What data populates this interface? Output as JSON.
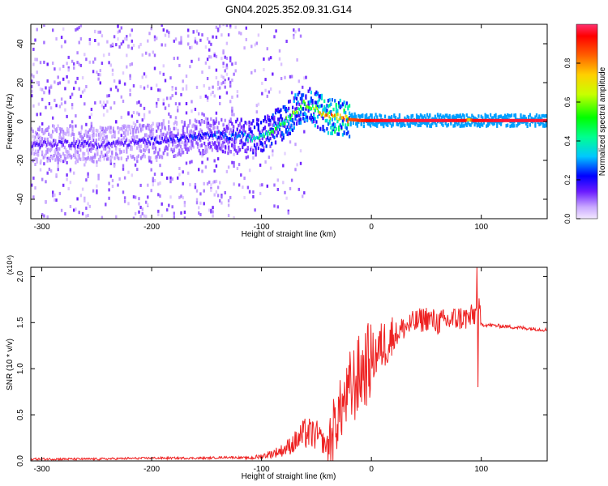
{
  "title": "GN04.2025.352.09.31.G14",
  "chart_data": [
    {
      "type": "heatmap",
      "xlabel": "Height of straight line (km)",
      "ylabel": "Frequency (Hz)",
      "xlim": [
        -310,
        160
      ],
      "ylim": [
        -50,
        50
      ],
      "x_ticks": [
        -300,
        -200,
        -100,
        0,
        100
      ],
      "y_ticks": [
        -40,
        -20,
        0,
        20,
        40
      ],
      "colorbar": {
        "label": "Normalized spectral amplitude",
        "range": [
          0.0,
          1.0
        ],
        "ticks": [
          0.0,
          0.2,
          0.4,
          0.6,
          0.8
        ],
        "tick_labels": [
          "0.0",
          "0.2",
          "0.4",
          "0.6",
          "0.8"
        ]
      },
      "ridge": {
        "x": [
          -310,
          -280,
          -250,
          -220,
          -200,
          -180,
          -160,
          -140,
          -130,
          -120,
          -110,
          -100,
          -90,
          -80,
          -70,
          -62,
          -55,
          -48,
          -40,
          -30,
          -20,
          -10,
          0,
          20,
          60,
          85,
          88,
          92,
          120,
          160
        ],
        "y": [
          -12,
          -11,
          -12,
          -11,
          -10,
          -9,
          -8,
          -7,
          -8,
          -7,
          -9,
          -7,
          -4,
          0,
          5,
          9,
          8,
          5,
          3,
          2,
          1,
          0.5,
          0.5,
          0.5,
          0.5,
          0.5,
          1,
          0.5,
          0.5,
          0.5
        ],
        "amplitude": [
          0.15,
          0.15,
          0.15,
          0.15,
          0.17,
          0.2,
          0.22,
          0.25,
          0.25,
          0.3,
          0.35,
          0.4,
          0.45,
          0.5,
          0.55,
          0.55,
          0.6,
          0.65,
          0.75,
          0.8,
          0.85,
          0.9,
          0.95,
          0.97,
          0.97,
          0.95,
          0.7,
          0.95,
          0.97,
          0.97
        ]
      },
      "grid": false
    },
    {
      "type": "line",
      "xlabel": "Height of straight line (km)",
      "ylabel": "SNR (10 * v/v)",
      "scale_label": "(x10⁴)",
      "xlim": [
        -310,
        160
      ],
      "ylim": [
        0,
        2.1
      ],
      "x_ticks": [
        -300,
        -200,
        -100,
        0,
        100
      ],
      "y_ticks": [
        0.0,
        0.5,
        1.0,
        1.5,
        2.0
      ],
      "y_tick_labels": [
        "0.0",
        "0.5",
        "1.0",
        "1.5",
        "2.0"
      ],
      "series": [
        {
          "color": "#ee2222",
          "x": [
            -310,
            -250,
            -200,
            -150,
            -130,
            -110,
            -100,
            -90,
            -80,
            -70,
            -60,
            -50,
            -40,
            -30,
            -20,
            -10,
            0,
            10,
            20,
            30,
            40,
            50,
            60,
            70,
            80,
            90,
            95,
            97,
            100,
            110,
            120,
            130,
            140,
            150,
            160
          ],
          "values": [
            0.02,
            0.02,
            0.03,
            0.03,
            0.04,
            0.03,
            0.05,
            0.08,
            0.12,
            0.2,
            0.3,
            0.28,
            0.15,
            0.5,
            0.75,
            0.95,
            1.1,
            1.25,
            1.35,
            1.45,
            1.5,
            1.55,
            1.5,
            1.52,
            1.55,
            1.55,
            1.6,
            1.7,
            1.48,
            1.47,
            1.46,
            1.45,
            1.44,
            1.43,
            1.42
          ]
        }
      ],
      "grid": false
    }
  ]
}
